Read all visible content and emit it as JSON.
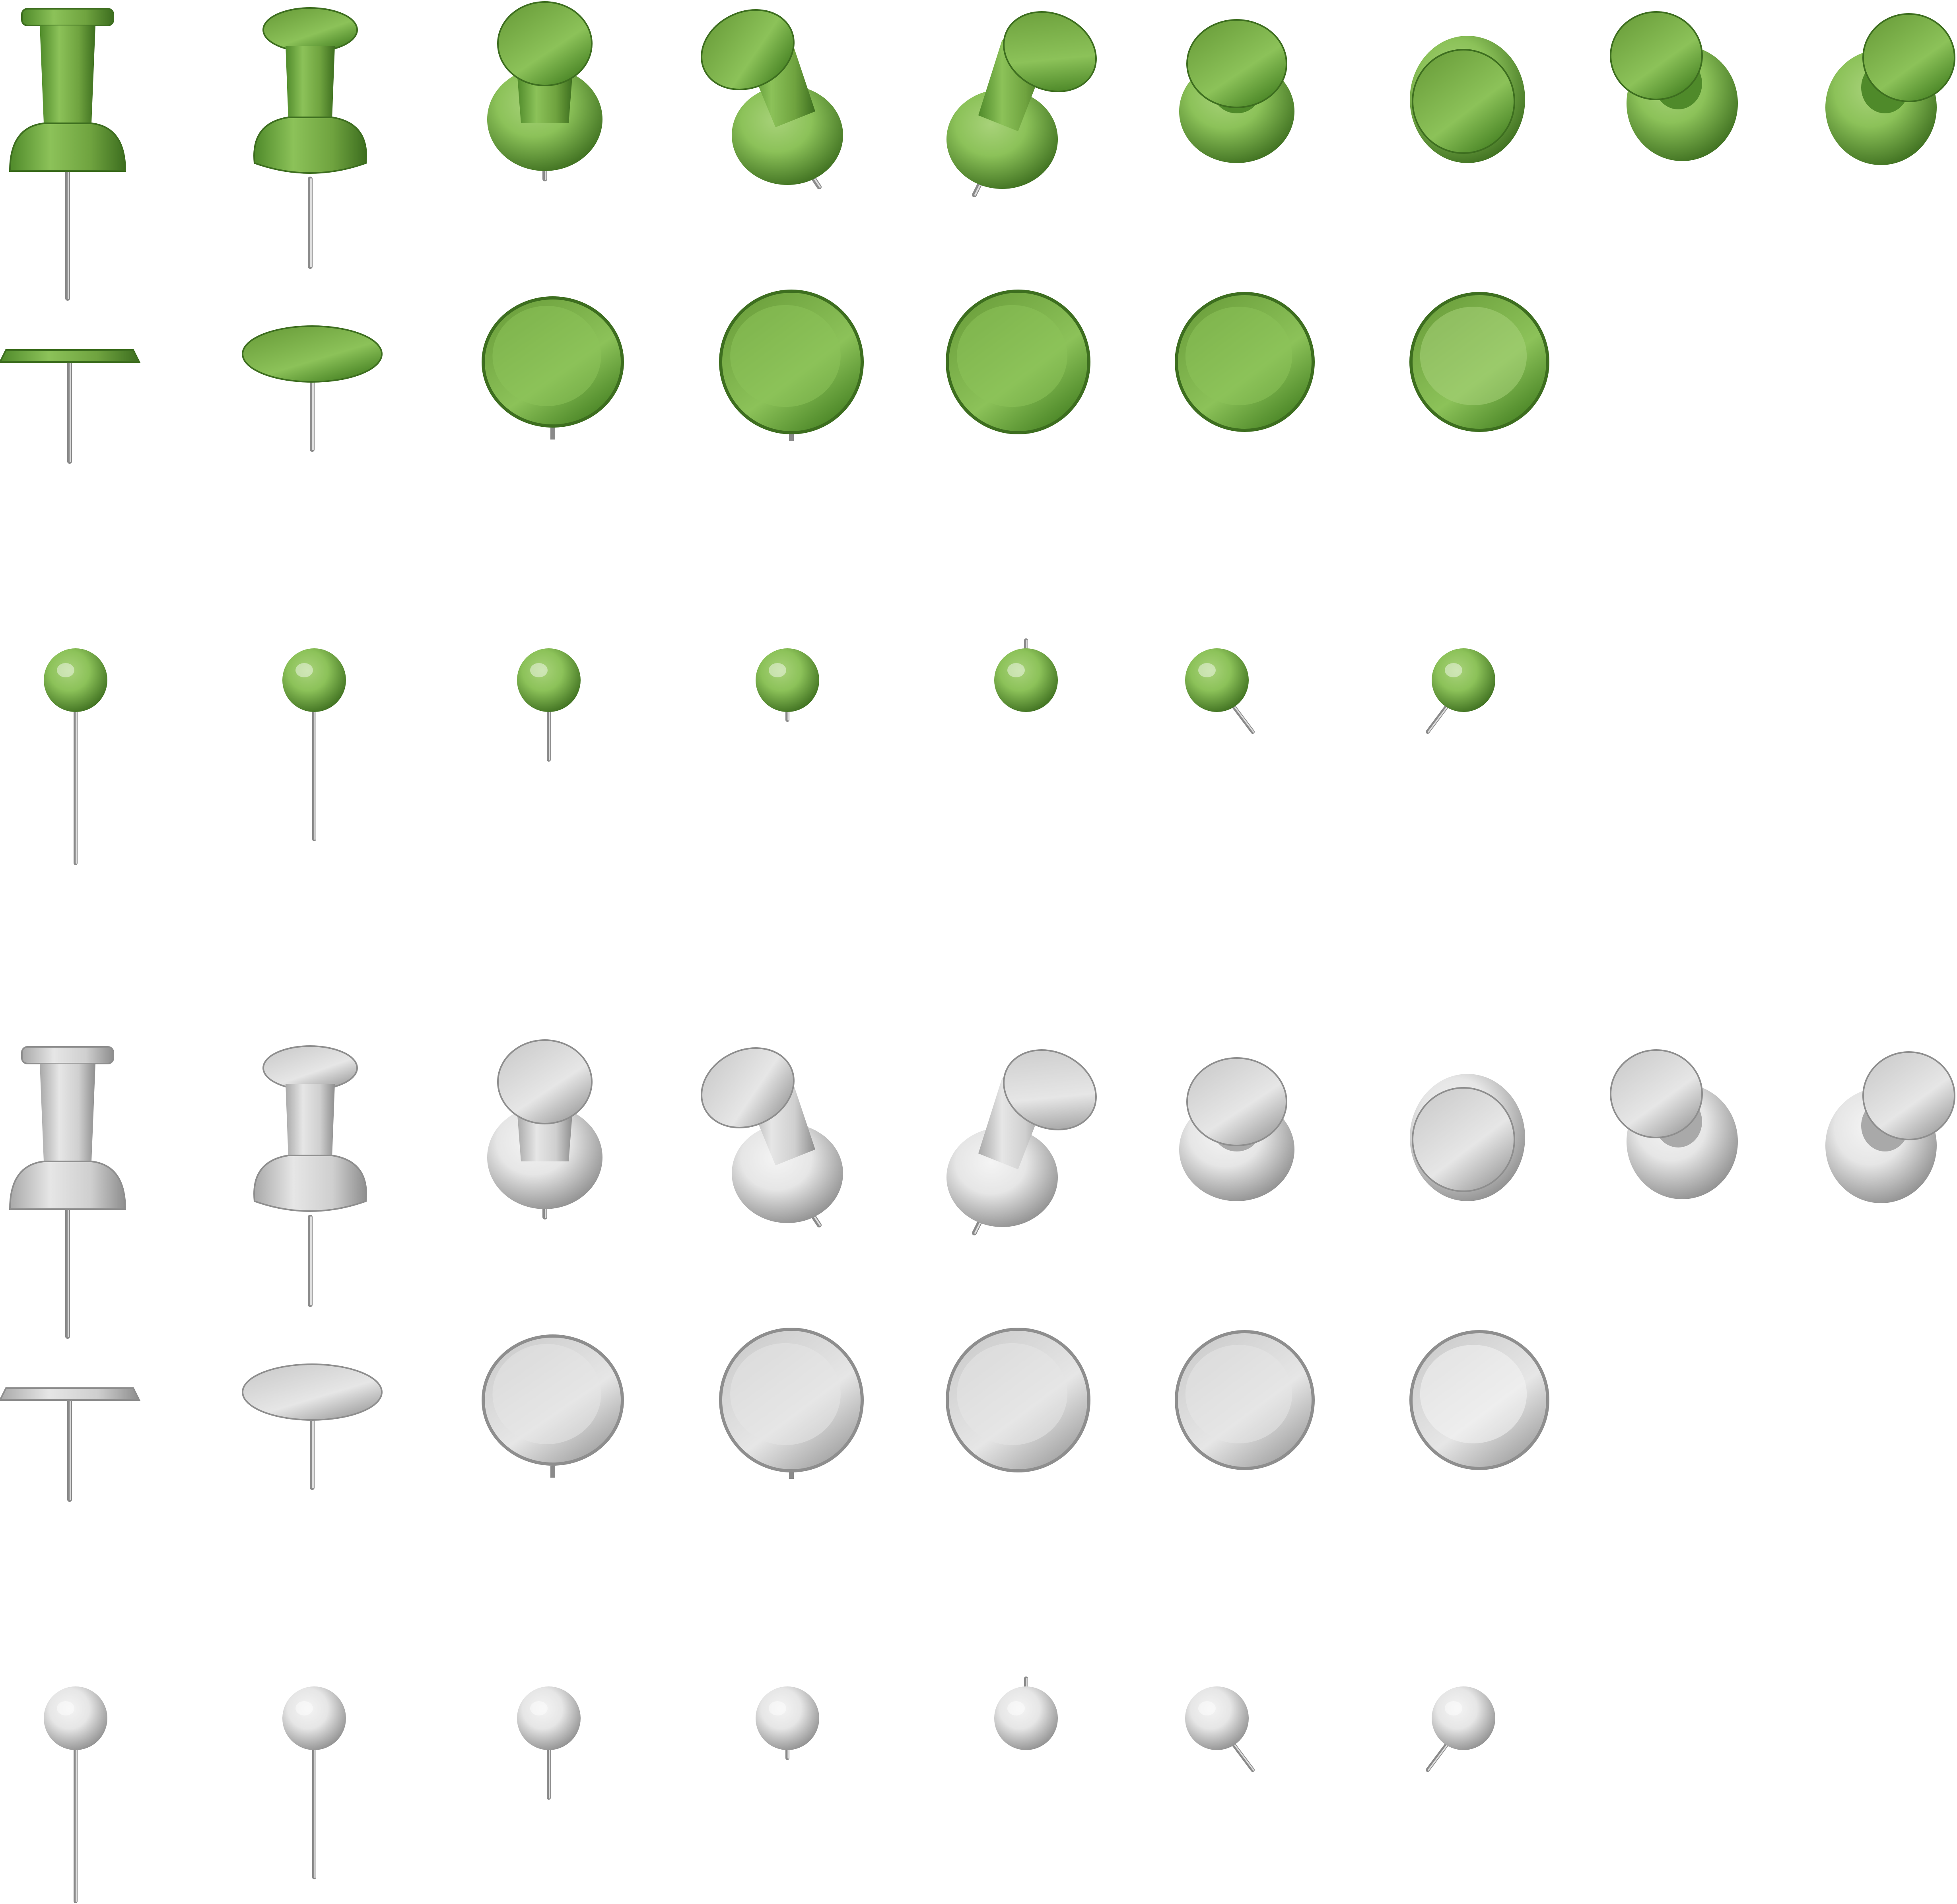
{
  "sheet": {
    "background": "#ffffff",
    "palettes": [
      {
        "name": "green",
        "dark": "#4f8a2a",
        "mid": "#6fa33f",
        "light": "#8cc259",
        "pale": "#a8d27a",
        "edge": "#3d6e1f"
      },
      {
        "name": "white",
        "dark": "#a9a9a9",
        "mid": "#cfcfcf",
        "light": "#e6e6e6",
        "pale": "#f4f4f4",
        "edge": "#8e8e8e"
      }
    ],
    "needle_color": "#8a8a8a",
    "groups": [
      {
        "palette": "green",
        "rows": [
          {
            "kind": "push-pin",
            "icons": [
              "push-pin-side-icon",
              "push-pin-three-quarter-icon",
              "push-pin-top-front-icon",
              "push-pin-tilted-left-icon",
              "push-pin-tilted-right-icon",
              "push-pin-top-down-icon",
              "push-pin-overhead-icon",
              "push-pin-top-left-icon",
              "push-pin-top-right-icon"
            ]
          },
          {
            "kind": "thumbtack",
            "icons": [
              "thumbtack-side-icon",
              "thumbtack-three-quarter-icon",
              "thumbtack-top-front-icon",
              "thumbtack-top-tilted-icon",
              "thumbtack-top-down-icon",
              "thumbtack-top-shaded-icon",
              "thumbtack-top-light-icon"
            ]
          },
          {
            "kind": "ball-pin",
            "icons": [
              "ball-pin-side-icon",
              "ball-pin-three-quarter-icon",
              "ball-pin-short-icon",
              "ball-pin-stub-icon",
              "ball-pin-top-icon",
              "ball-pin-tilted-right-icon",
              "ball-pin-tilted-left-icon"
            ]
          }
        ]
      },
      {
        "palette": "white",
        "rows": [
          {
            "kind": "push-pin",
            "icons": [
              "push-pin-side-icon",
              "push-pin-three-quarter-icon",
              "push-pin-top-front-icon",
              "push-pin-tilted-left-icon",
              "push-pin-tilted-right-icon",
              "push-pin-top-down-icon",
              "push-pin-overhead-icon",
              "push-pin-top-left-icon",
              "push-pin-top-right-icon"
            ]
          },
          {
            "kind": "thumbtack",
            "icons": [
              "thumbtack-side-icon",
              "thumbtack-three-quarter-icon",
              "thumbtack-top-front-icon",
              "thumbtack-top-tilted-icon",
              "thumbtack-top-down-icon",
              "thumbtack-top-shaded-icon",
              "thumbtack-top-light-icon"
            ]
          },
          {
            "kind": "ball-pin",
            "icons": [
              "ball-pin-side-icon",
              "ball-pin-three-quarter-icon",
              "ball-pin-short-icon",
              "ball-pin-stub-icon",
              "ball-pin-top-icon",
              "ball-pin-tilted-right-icon",
              "ball-pin-tilted-left-icon"
            ]
          }
        ]
      }
    ]
  }
}
